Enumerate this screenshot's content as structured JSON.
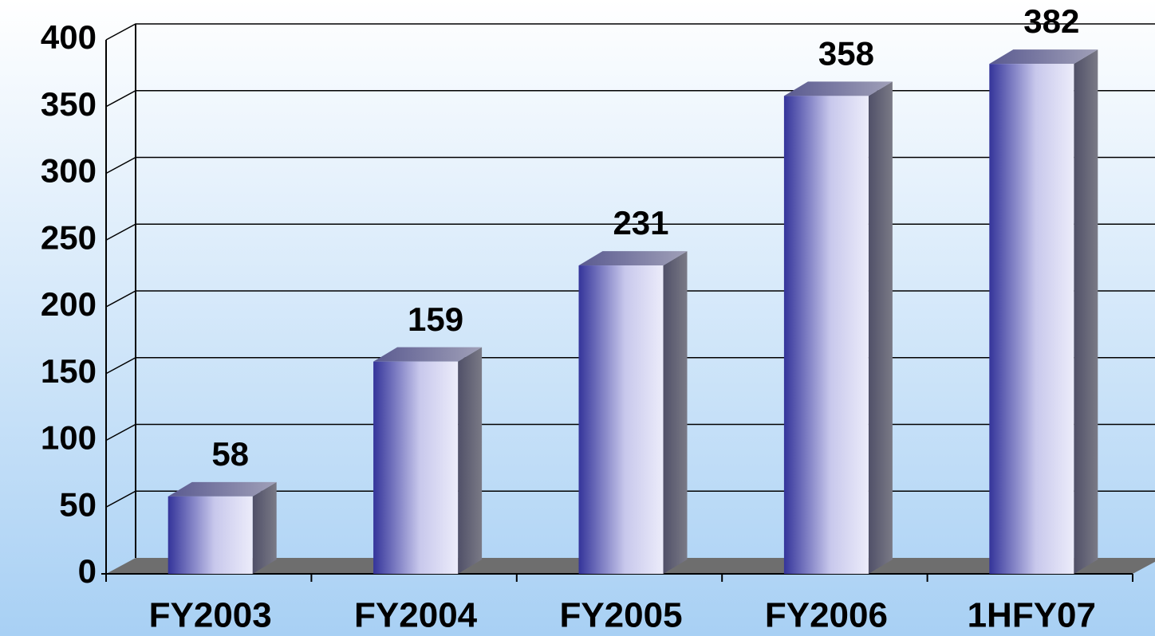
{
  "chart_data": {
    "type": "bar",
    "categories": [
      "FY2003",
      "FY2004",
      "FY2005",
      "FY2006",
      "1HFY07"
    ],
    "values": [
      58,
      159,
      231,
      358,
      382
    ],
    "ylim": [
      0,
      400
    ],
    "yticks": [
      0,
      50,
      100,
      150,
      200,
      250,
      300,
      350,
      400
    ],
    "grid": true
  }
}
